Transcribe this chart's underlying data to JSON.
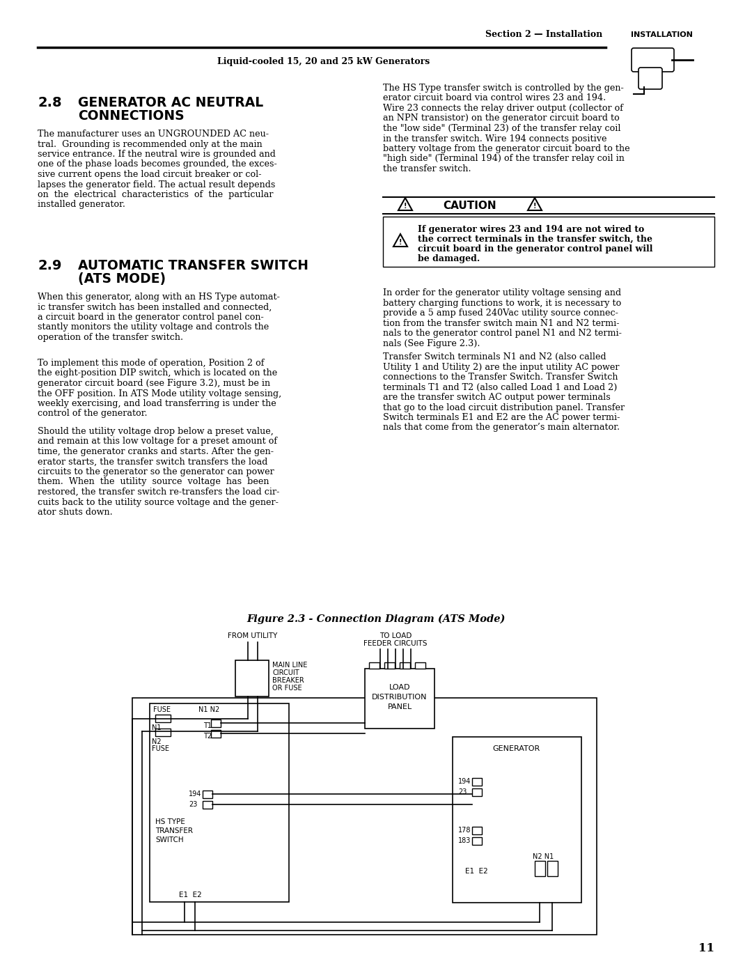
{
  "title_header": "Section 2 — Installation",
  "subtitle_header": "Liquid-cooled 15, 20 and 25 kW Generators",
  "page_number": "11",
  "figure_caption": "Figure 2.3 - Connection Diagram (ATS Mode)",
  "bg_color": "#ffffff"
}
